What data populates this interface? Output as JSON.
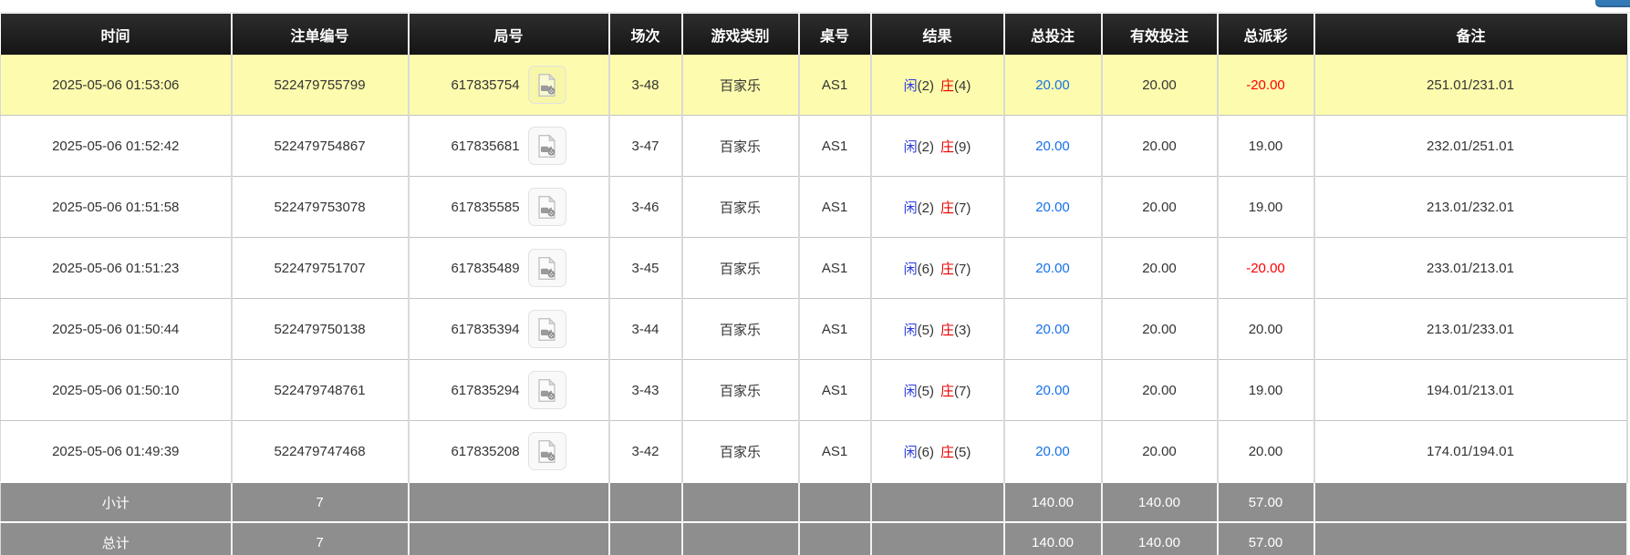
{
  "table": {
    "columns": [
      "时间",
      "注单编号",
      "局号",
      "场次",
      "游戏类别",
      "桌号",
      "结果",
      "总投注",
      "有效投注",
      "总派彩",
      "备注"
    ],
    "rows": [
      {
        "time": "2025-05-06 01:53:06",
        "bet_id": "522479755799",
        "round_id": "617835754",
        "session": "3-48",
        "game": "百家乐",
        "table_no": "AS1",
        "result": {
          "player_label": "闲",
          "player_score": "(2)",
          "banker_label": "庄",
          "banker_score": "(4)"
        },
        "total_bet": "20.00",
        "valid_bet": "20.00",
        "payout": "-20.00",
        "remark": "251.01/231.01",
        "highlighted": true
      },
      {
        "time": "2025-05-06 01:52:42",
        "bet_id": "522479754867",
        "round_id": "617835681",
        "session": "3-47",
        "game": "百家乐",
        "table_no": "AS1",
        "result": {
          "player_label": "闲",
          "player_score": "(2)",
          "banker_label": "庄",
          "banker_score": "(9)"
        },
        "total_bet": "20.00",
        "valid_bet": "20.00",
        "payout": "19.00",
        "remark": "232.01/251.01",
        "highlighted": false
      },
      {
        "time": "2025-05-06 01:51:58",
        "bet_id": "522479753078",
        "round_id": "617835585",
        "session": "3-46",
        "game": "百家乐",
        "table_no": "AS1",
        "result": {
          "player_label": "闲",
          "player_score": "(2)",
          "banker_label": "庄",
          "banker_score": "(7)"
        },
        "total_bet": "20.00",
        "valid_bet": "20.00",
        "payout": "19.00",
        "remark": "213.01/232.01",
        "highlighted": false
      },
      {
        "time": "2025-05-06 01:51:23",
        "bet_id": "522479751707",
        "round_id": "617835489",
        "session": "3-45",
        "game": "百家乐",
        "table_no": "AS1",
        "result": {
          "player_label": "闲",
          "player_score": "(6)",
          "banker_label": "庄",
          "banker_score": "(7)"
        },
        "total_bet": "20.00",
        "valid_bet": "20.00",
        "payout": "-20.00",
        "remark": "233.01/213.01",
        "highlighted": false
      },
      {
        "time": "2025-05-06 01:50:44",
        "bet_id": "522479750138",
        "round_id": "617835394",
        "session": "3-44",
        "game": "百家乐",
        "table_no": "AS1",
        "result": {
          "player_label": "闲",
          "player_score": "(5)",
          "banker_label": "庄",
          "banker_score": "(3)"
        },
        "total_bet": "20.00",
        "valid_bet": "20.00",
        "payout": "20.00",
        "remark": "213.01/233.01",
        "highlighted": false
      },
      {
        "time": "2025-05-06 01:50:10",
        "bet_id": "522479748761",
        "round_id": "617835294",
        "session": "3-43",
        "game": "百家乐",
        "table_no": "AS1",
        "result": {
          "player_label": "闲",
          "player_score": "(5)",
          "banker_label": "庄",
          "banker_score": "(7)"
        },
        "total_bet": "20.00",
        "valid_bet": "20.00",
        "payout": "19.00",
        "remark": "194.01/213.01",
        "highlighted": false
      },
      {
        "time": "2025-05-06 01:49:39",
        "bet_id": "522479747468",
        "round_id": "617835208",
        "session": "3-42",
        "game": "百家乐",
        "table_no": "AS1",
        "result": {
          "player_label": "闲",
          "player_score": "(6)",
          "banker_label": "庄",
          "banker_score": "(5)"
        },
        "total_bet": "20.00",
        "valid_bet": "20.00",
        "payout": "20.00",
        "remark": "174.01/194.01",
        "highlighted": false
      }
    ],
    "footer": [
      {
        "label": "小计",
        "count": "7",
        "total_bet": "140.00",
        "valid_bet": "140.00",
        "payout": "57.00"
      },
      {
        "label": "总计",
        "count": "7",
        "total_bet": "140.00",
        "valid_bet": "140.00",
        "payout": "57.00"
      }
    ]
  },
  "icons": {
    "video_replay": "video-file-icon"
  },
  "colors": {
    "header_bg": "#1b1b1b",
    "highlight_yellow": "#fdfcae",
    "summary_bg": "#8e8e8e",
    "player_blue": "#2b3cdc",
    "banker_red": "#e60000",
    "link_blue": "#1670e8",
    "negative_red": "#ff0000",
    "top_button_blue": "#337ab7"
  }
}
